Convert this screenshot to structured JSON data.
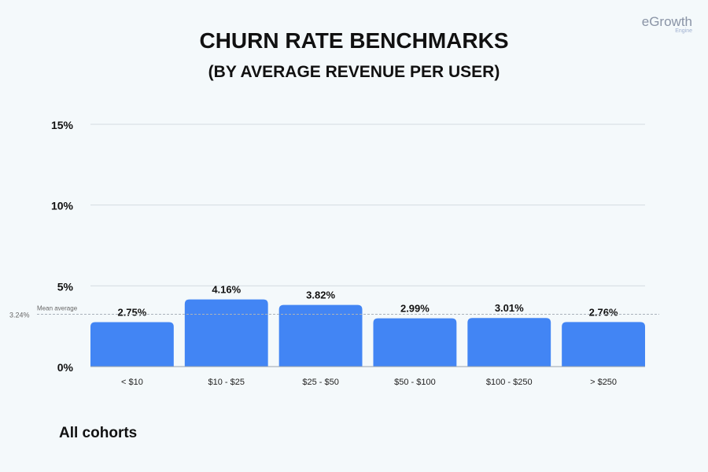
{
  "title": "CHURN RATE BENCHMARKS",
  "subtitle": "(BY AVERAGE REVENUE PER USER)",
  "logo": {
    "name": "eGrowth",
    "tagline": "Engine"
  },
  "footer": "All cohorts",
  "colors": {
    "bar": "#4285f4",
    "grid": "#d5dbe0",
    "text": "#111111"
  },
  "chart_data": {
    "type": "bar",
    "title": "CHURN RATE BENCHMARKS (BY AVERAGE REVENUE PER USER)",
    "categories": [
      "< $10",
      "$10 - $25",
      "$25 - $50",
      "$50 - $100",
      "$100 - $250",
      "> $250"
    ],
    "values": [
      2.75,
      4.16,
      3.82,
      2.99,
      3.01,
      2.76
    ],
    "value_labels": [
      "2.75%",
      "4.16%",
      "3.82%",
      "2.99%",
      "3.01%",
      "2.76%"
    ],
    "yticks": [
      0,
      5,
      10,
      15
    ],
    "ytick_labels": [
      "0%",
      "5%",
      "10%",
      "15%"
    ],
    "ylim": [
      0,
      15
    ],
    "grid": true,
    "mean": {
      "value": 3.24,
      "label": "3.24%",
      "caption": "Mean average"
    },
    "xlabel": "",
    "ylabel": ""
  }
}
